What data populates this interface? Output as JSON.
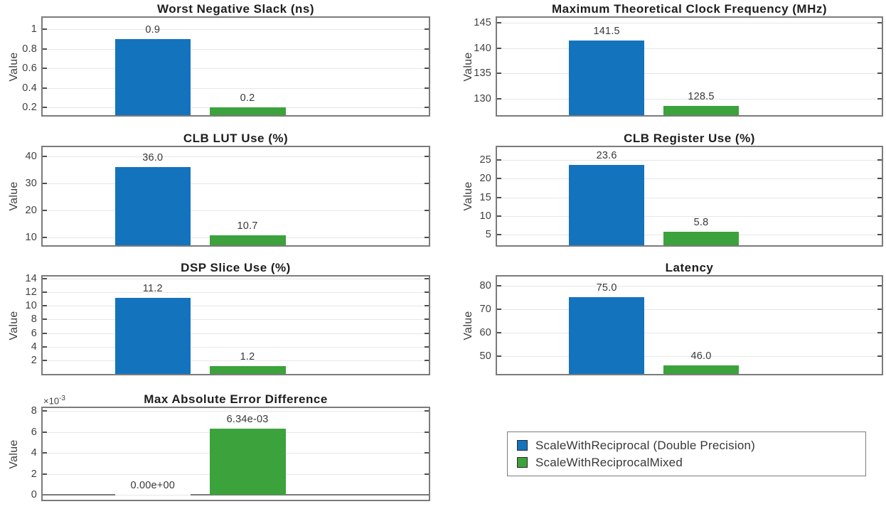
{
  "figure": {
    "background": "#ffffff",
    "colors": {
      "series1": "#1473bd",
      "series2": "#3ca23c",
      "grid": "#e7e7e7",
      "axis_border": "#7b7b7b",
      "tick": "#4f4f4f",
      "baseline": "#787878",
      "text": "#3f3f3f",
      "title": "#1e1e1e"
    },
    "bar_geometry": [
      {
        "left_pct": 18.7,
        "width_pct": 19.6
      },
      {
        "left_pct": 43.2,
        "width_pct": 19.7
      }
    ]
  },
  "legend": {
    "position": "bottom-right",
    "entries": [
      {
        "label": "ScaleWithReciprocal (Double Precision)",
        "color": "#1473bd"
      },
      {
        "label": "ScaleWithReciprocalMixed",
        "color": "#3ca23c"
      }
    ]
  },
  "chart_data": [
    {
      "type": "bar",
      "title": "Worst Negative Slack (ns)",
      "ylabel": "Value",
      "categories": [
        "ScaleWithReciprocal (Double Precision)",
        "ScaleWithReciprocalMixed"
      ],
      "values": [
        0.9,
        0.2
      ],
      "value_labels": [
        "0.9",
        "0.2"
      ],
      "ylim": [
        0.12,
        1.12
      ],
      "tick_values": [
        0.2,
        0.4,
        0.6,
        0.8,
        1
      ],
      "tick_labels": [
        "0.2",
        "0.4",
        "0.6",
        "0.8",
        "1"
      ],
      "grid": true
    },
    {
      "type": "bar",
      "title": "Maximum Theoretical Clock Frequency (MHz)",
      "ylabel": "Value",
      "categories": [
        "ScaleWithReciprocal (Double Precision)",
        "ScaleWithReciprocalMixed"
      ],
      "values": [
        141.5,
        128.5
      ],
      "value_labels": [
        "141.5",
        "128.5"
      ],
      "ylim": [
        126.7,
        146
      ],
      "tick_values": [
        130,
        135,
        140,
        145
      ],
      "tick_labels": [
        "130",
        "135",
        "140",
        "145"
      ],
      "grid": true
    },
    {
      "type": "bar",
      "title": "CLB LUT Use (%)",
      "ylabel": "Value",
      "categories": [
        "ScaleWithReciprocal (Double Precision)",
        "ScaleWithReciprocalMixed"
      ],
      "values": [
        36.0,
        10.7
      ],
      "value_labels": [
        "36.0",
        "10.7"
      ],
      "ylim": [
        7,
        43.3
      ],
      "tick_values": [
        10,
        20,
        30,
        40
      ],
      "tick_labels": [
        "10",
        "20",
        "30",
        "40"
      ],
      "grid": true
    },
    {
      "type": "bar",
      "title": "CLB Register Use (%)",
      "ylabel": "Value",
      "categories": [
        "ScaleWithReciprocal (Double Precision)",
        "ScaleWithReciprocalMixed"
      ],
      "values": [
        23.6,
        5.8
      ],
      "value_labels": [
        "23.6",
        "5.8"
      ],
      "ylim": [
        2.2,
        28.4
      ],
      "tick_values": [
        5,
        10,
        15,
        20,
        25
      ],
      "tick_labels": [
        "5",
        "10",
        "15",
        "20",
        "25"
      ],
      "grid": true
    },
    {
      "type": "bar",
      "title": "DSP Slice Use (%)",
      "ylabel": "Value",
      "categories": [
        "ScaleWithReciprocal (Double Precision)",
        "ScaleWithReciprocalMixed"
      ],
      "values": [
        11.2,
        1.2
      ],
      "value_labels": [
        "11.2",
        "1.2"
      ],
      "ylim": [
        0,
        14.3
      ],
      "tick_values": [
        2,
        4,
        6,
        8,
        10,
        12,
        14
      ],
      "tick_labels": [
        "2",
        "4",
        "6",
        "8",
        "10",
        "12",
        "14"
      ],
      "grid": true
    },
    {
      "type": "bar",
      "title": "Latency",
      "ylabel": "Value",
      "categories": [
        "ScaleWithReciprocal (Double Precision)",
        "ScaleWithReciprocalMixed"
      ],
      "values": [
        75.0,
        46.0
      ],
      "value_labels": [
        "75.0",
        "46.0"
      ],
      "ylim": [
        42.4,
        83.8
      ],
      "tick_values": [
        50,
        60,
        70,
        80
      ],
      "tick_labels": [
        "50",
        "60",
        "70",
        "80"
      ],
      "grid": true
    },
    {
      "type": "bar",
      "title": "Max Absolute Error Difference",
      "ylabel": "Value",
      "categories": [
        "ScaleWithReciprocal (Double Precision)",
        "ScaleWithReciprocalMixed"
      ],
      "values": [
        0,
        0.00634
      ],
      "value_labels": [
        "0.00e+00",
        "6.34e-03"
      ],
      "ylim": [
        -0.00045,
        0.0083
      ],
      "tick_values": [
        0,
        0.002,
        0.004,
        0.006,
        0.008
      ],
      "tick_labels": [
        "0",
        "2",
        "4",
        "6",
        "8"
      ],
      "exponent_label": {
        "text": "×10",
        "exp": "-3"
      },
      "show_baseline": true,
      "grid": true
    }
  ]
}
